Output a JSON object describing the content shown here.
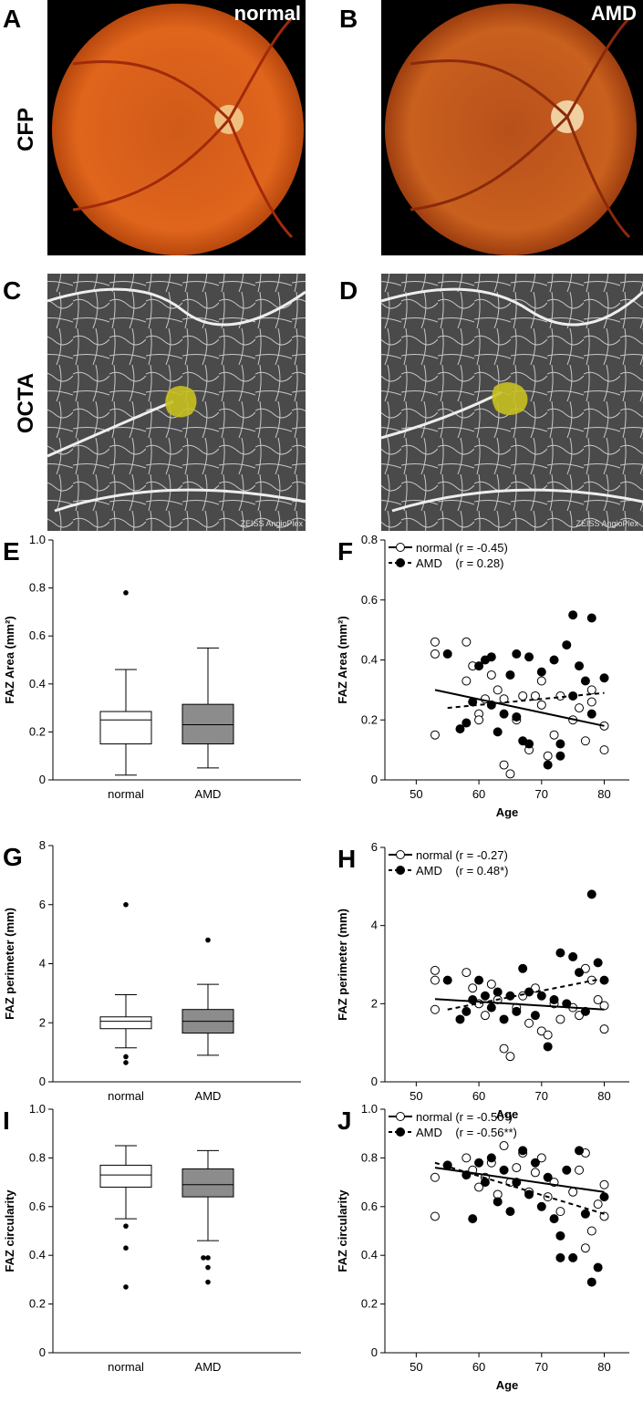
{
  "photo_panels": [
    {
      "panel": "A",
      "tag": "normal"
    },
    {
      "panel": "B",
      "tag": "AMD"
    },
    {
      "panel": "C",
      "watermark": "ZEISS AngioPlex"
    },
    {
      "panel": "D",
      "watermark": "ZEISS AngioPlex"
    }
  ],
  "row_labels": [
    "CFP",
    "OCTA"
  ],
  "chart_data": [
    {
      "type": "box",
      "panel": "E",
      "ylabel": "FAZ Area (mm²)",
      "categories": [
        "normal",
        "AMD"
      ],
      "colors": [
        "#ffffff",
        "#8c8c8c"
      ],
      "boxes": [
        {
          "whisker_low": 0.02,
          "q1": 0.15,
          "median": 0.25,
          "q3": 0.285,
          "whisker_high": 0.46,
          "outliers": [
            0.78
          ]
        },
        {
          "whisker_low": 0.05,
          "q1": 0.15,
          "median": 0.23,
          "q3": 0.315,
          "whisker_high": 0.55,
          "outliers": []
        }
      ],
      "ylim": [
        0,
        1
      ],
      "yticks": [
        0,
        0.2,
        0.4,
        0.6,
        0.8,
        {
          "value": 1,
          "label": "1.0"
        }
      ]
    },
    {
      "type": "scatter",
      "panel": "F",
      "xlabel": "Age",
      "ylabel": "FAZ Area (mm²)",
      "xlim": [
        45,
        84
      ],
      "xticks": [
        50,
        60,
        70,
        80
      ],
      "ylim": [
        0,
        0.8
      ],
      "yticks": [
        0,
        0.2,
        0.4,
        0.6,
        0.8
      ],
      "series": [
        {
          "name": "normal (r = -0.45)",
          "marker": "open",
          "color": "#000000",
          "x": [
            53,
            53,
            53,
            58,
            58,
            59,
            60,
            60,
            61,
            62,
            63,
            64,
            64,
            65,
            66,
            67,
            68,
            69,
            70,
            70,
            71,
            72,
            73,
            75,
            76,
            77,
            78,
            78,
            80,
            80
          ],
          "y": [
            0.46,
            0.42,
            0.15,
            0.46,
            0.33,
            0.38,
            0.22,
            0.2,
            0.27,
            0.35,
            0.3,
            0.27,
            0.05,
            0.02,
            0.2,
            0.28,
            0.1,
            0.28,
            0.25,
            0.33,
            0.08,
            0.15,
            0.28,
            0.2,
            0.24,
            0.13,
            0.3,
            0.26,
            0.18,
            0.1
          ],
          "fit": {
            "x": [
              53,
              80
            ],
            "y": [
              0.3,
              0.18
            ],
            "dashed": false
          }
        },
        {
          "name": "AMD    (r = 0.28)",
          "marker": "filled",
          "color": "#000000",
          "x": [
            55,
            57,
            58,
            59,
            60,
            61,
            62,
            62,
            63,
            64,
            65,
            66,
            66,
            67,
            68,
            68,
            70,
            71,
            72,
            73,
            73,
            74,
            75,
            75,
            76,
            77,
            78,
            78,
            80
          ],
          "y": [
            0.42,
            0.17,
            0.19,
            0.26,
            0.38,
            0.4,
            0.25,
            0.41,
            0.16,
            0.22,
            0.35,
            0.21,
            0.42,
            0.13,
            0.12,
            0.41,
            0.36,
            0.05,
            0.4,
            0.08,
            0.12,
            0.45,
            0.55,
            0.28,
            0.38,
            0.33,
            0.54,
            0.22,
            0.34
          ],
          "fit": {
            "x": [
              55,
              80
            ],
            "y": [
              0.24,
              0.29
            ],
            "dashed": true
          }
        }
      ]
    },
    {
      "type": "box",
      "panel": "G",
      "ylabel": "FAZ perimeter (mm)",
      "categories": [
        "normal",
        "AMD"
      ],
      "colors": [
        "#ffffff",
        "#8c8c8c"
      ],
      "boxes": [
        {
          "whisker_low": 1.15,
          "q1": 1.8,
          "median": 2.05,
          "q3": 2.2,
          "whisker_high": 2.95,
          "outliers": [
            0.65,
            0.85,
            6
          ]
        },
        {
          "whisker_low": 0.9,
          "q1": 1.65,
          "median": 2.05,
          "q3": 2.45,
          "whisker_high": 3.3,
          "outliers": [
            4.8
          ]
        }
      ],
      "ylim": [
        0,
        8
      ],
      "yticks": [
        0,
        2,
        4,
        6,
        8
      ]
    },
    {
      "type": "scatter",
      "panel": "H",
      "xlabel": "Age",
      "ylabel": "FAZ perimeter (mm)",
      "xlim": [
        45,
        84
      ],
      "xticks": [
        50,
        60,
        70,
        80
      ],
      "ylim": [
        0,
        6
      ],
      "yticks": [
        0,
        2,
        4,
        6
      ],
      "series": [
        {
          "name": "normal (r = -0.27)",
          "marker": "open",
          "color": "#000000",
          "x": [
            53,
            53,
            53,
            58,
            59,
            60,
            61,
            62,
            63,
            64,
            65,
            66,
            67,
            68,
            69,
            70,
            71,
            72,
            73,
            75,
            76,
            77,
            78,
            79,
            80,
            80
          ],
          "y": [
            2.85,
            2.6,
            1.85,
            2.8,
            2.4,
            2,
            1.7,
            2.5,
            2.1,
            0.85,
            0.65,
            1.9,
            2.2,
            1.5,
            2.4,
            1.3,
            1.2,
            2,
            1.6,
            1.9,
            1.7,
            2.9,
            2.6,
            2.1,
            1.95,
            1.35
          ],
          "fit": {
            "x": [
              53,
              80
            ],
            "y": [
              2.12,
              1.85
            ],
            "dashed": false
          }
        },
        {
          "name": "AMD    (r = 0.48*)",
          "marker": "filled",
          "color": "#000000",
          "x": [
            55,
            57,
            58,
            59,
            60,
            61,
            62,
            63,
            64,
            65,
            66,
            67,
            68,
            69,
            70,
            71,
            72,
            73,
            74,
            75,
            76,
            77,
            78,
            79,
            80
          ],
          "y": [
            2.6,
            1.6,
            1.8,
            2.1,
            2.6,
            2.2,
            1.9,
            2.3,
            1.6,
            2.2,
            1.8,
            2.9,
            2.3,
            1.7,
            2.2,
            0.9,
            2.1,
            3.3,
            2,
            3.2,
            2.8,
            1.8,
            4.8,
            3.05,
            2.6
          ],
          "fit": {
            "x": [
              55,
              80
            ],
            "y": [
              1.85,
              2.65
            ],
            "dashed": true
          }
        }
      ]
    },
    {
      "type": "box",
      "panel": "I",
      "ylabel": "FAZ circularity",
      "categories": [
        "normal",
        "AMD"
      ],
      "colors": [
        "#ffffff",
        "#8c8c8c"
      ],
      "boxes": [
        {
          "whisker_low": 0.55,
          "q1": 0.68,
          "median": 0.73,
          "q3": 0.77,
          "whisker_high": 0.85,
          "outliers": [
            0.52,
            0.43,
            0.27
          ]
        },
        {
          "whisker_low": 0.46,
          "q1": 0.64,
          "median": 0.69,
          "q3": 0.755,
          "whisker_high": 0.83,
          "outliers": [
            0.39,
            0.39,
            0.35,
            0.29
          ]
        }
      ],
      "ylim": [
        0,
        1
      ],
      "yticks": [
        0,
        0.2,
        0.4,
        0.6,
        0.8,
        {
          "value": 1,
          "label": "1.0"
        }
      ]
    },
    {
      "type": "scatter",
      "panel": "J",
      "xlabel": "Age",
      "ylabel": "FAZ circularity",
      "xlim": [
        45,
        84
      ],
      "xticks": [
        50,
        60,
        70,
        80
      ],
      "ylim": [
        0,
        1
      ],
      "yticks": [
        0,
        0.2,
        0.4,
        0.6,
        0.8,
        {
          "value": 1,
          "label": "1.0"
        }
      ],
      "series": [
        {
          "name": "normal (r = -0.50*)",
          "marker": "open",
          "color": "#000000",
          "x": [
            53,
            53,
            58,
            59,
            60,
            61,
            62,
            63,
            64,
            65,
            66,
            67,
            68,
            69,
            70,
            71,
            72,
            73,
            75,
            76,
            77,
            78,
            77,
            79,
            80,
            80
          ],
          "y": [
            0.72,
            0.56,
            0.8,
            0.75,
            0.68,
            0.72,
            0.78,
            0.65,
            0.85,
            0.7,
            0.76,
            0.82,
            0.66,
            0.74,
            0.8,
            0.64,
            0.7,
            0.58,
            0.66,
            0.75,
            0.82,
            0.5,
            0.43,
            0.61,
            0.69,
            0.56
          ],
          "fit": {
            "x": [
              53,
              80
            ],
            "y": [
              0.76,
              0.66
            ],
            "dashed": false
          }
        },
        {
          "name": "AMD    (r = -0.56**)",
          "marker": "filled",
          "color": "#000000",
          "x": [
            55,
            58,
            59,
            60,
            61,
            62,
            63,
            64,
            65,
            66,
            67,
            68,
            69,
            70,
            71,
            72,
            73,
            73,
            74,
            75,
            76,
            77,
            78,
            79,
            80
          ],
          "y": [
            0.77,
            0.73,
            0.55,
            0.78,
            0.7,
            0.8,
            0.62,
            0.75,
            0.58,
            0.7,
            0.83,
            0.65,
            0.78,
            0.6,
            0.72,
            0.55,
            0.48,
            0.39,
            0.75,
            0.39,
            0.83,
            0.57,
            0.29,
            0.35,
            0.64
          ],
          "fit": {
            "x": [
              53,
              80
            ],
            "y": [
              0.78,
              0.57
            ],
            "dashed": true
          }
        }
      ]
    }
  ]
}
